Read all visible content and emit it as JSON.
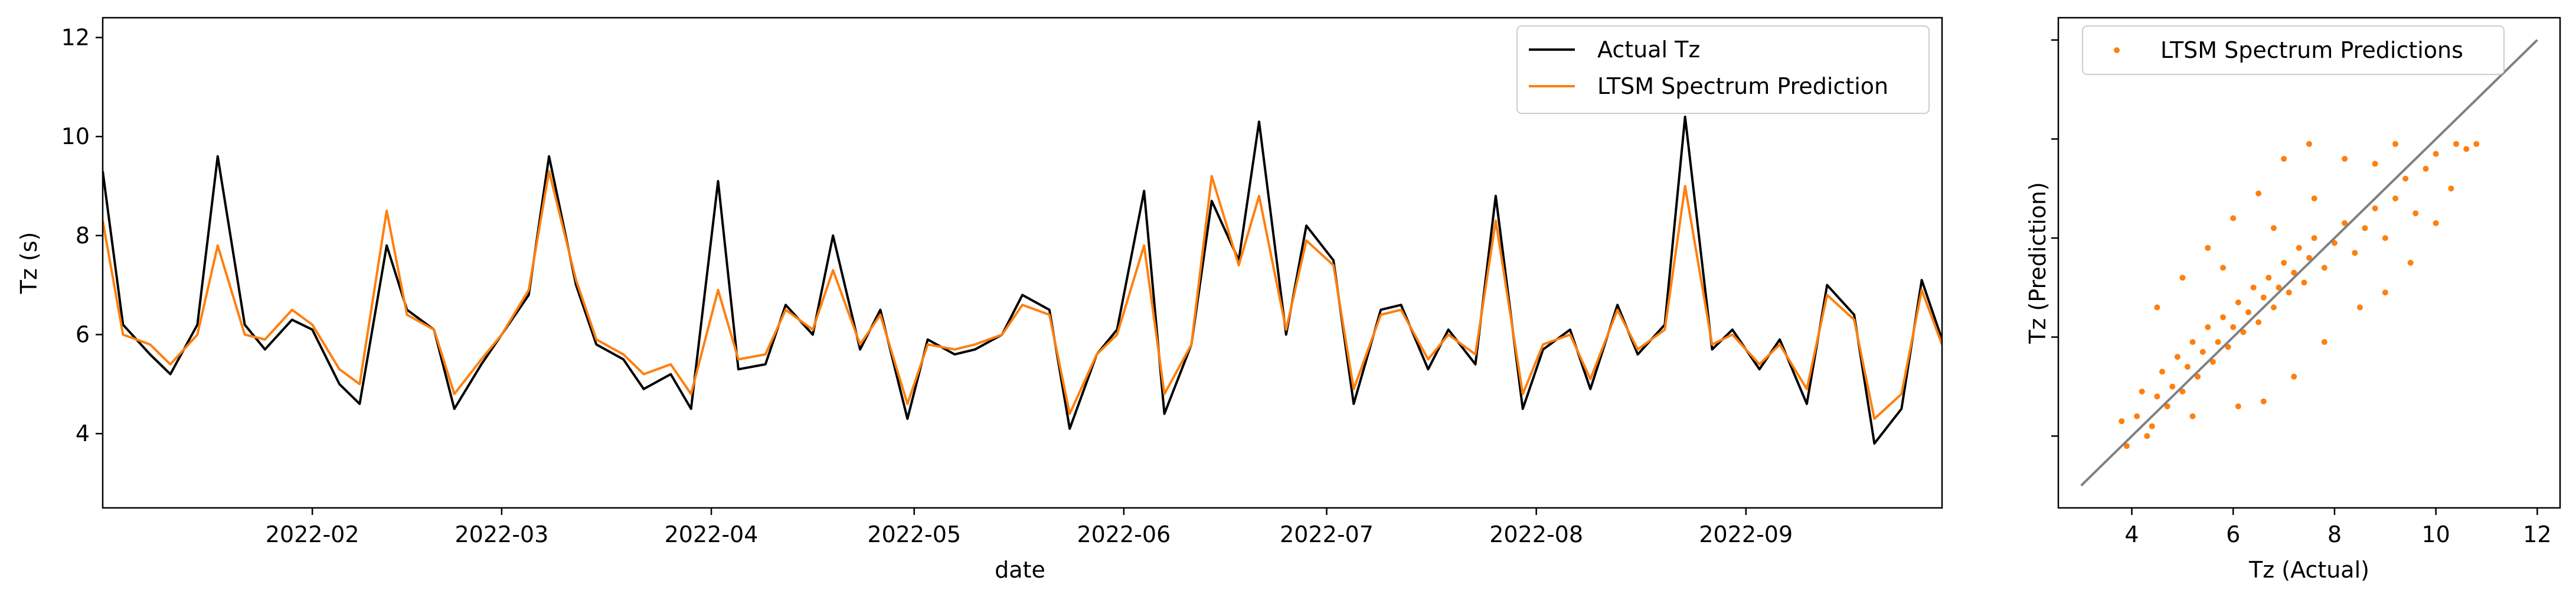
{
  "colors": {
    "actual": "#000000",
    "prediction": "#ff7f0e",
    "identity": "#808080",
    "frame": "#000000",
    "legend_edge": "#cccccc"
  },
  "chart_data": [
    {
      "type": "line",
      "xlabel": "date",
      "ylabel": "Tz (s)",
      "xlim": [
        "2022-01-01",
        "2022-09-30"
      ],
      "ylim": [
        2.5,
        12.4
      ],
      "x_ticks": [
        {
          "date": "2022-02-01",
          "label": "2022-02"
        },
        {
          "date": "2022-03-01",
          "label": "2022-03"
        },
        {
          "date": "2022-04-01",
          "label": "2022-04"
        },
        {
          "date": "2022-05-01",
          "label": "2022-05"
        },
        {
          "date": "2022-06-01",
          "label": "2022-06"
        },
        {
          "date": "2022-07-01",
          "label": "2022-07"
        },
        {
          "date": "2022-08-01",
          "label": "2022-08"
        },
        {
          "date": "2022-09-01",
          "label": "2022-09"
        }
      ],
      "y_ticks": [
        4,
        6,
        8,
        10,
        12
      ],
      "legend_position": "upper-right",
      "series": [
        {
          "name": "Actual Tz",
          "style": "line",
          "x": [
            "2022-01-01",
            "2022-01-04",
            "2022-01-08",
            "2022-01-11",
            "2022-01-15",
            "2022-01-18",
            "2022-01-22",
            "2022-01-25",
            "2022-01-29",
            "2022-02-01",
            "2022-02-05",
            "2022-02-08",
            "2022-02-12",
            "2022-02-15",
            "2022-02-19",
            "2022-02-22",
            "2022-02-26",
            "2022-03-01",
            "2022-03-05",
            "2022-03-08",
            "2022-03-12",
            "2022-03-15",
            "2022-03-19",
            "2022-03-22",
            "2022-03-26",
            "2022-03-29",
            "2022-04-02",
            "2022-04-05",
            "2022-04-09",
            "2022-04-12",
            "2022-04-16",
            "2022-04-19",
            "2022-04-23",
            "2022-04-26",
            "2022-04-30",
            "2022-05-03",
            "2022-05-07",
            "2022-05-10",
            "2022-05-14",
            "2022-05-17",
            "2022-05-21",
            "2022-05-24",
            "2022-05-28",
            "2022-05-31",
            "2022-06-04",
            "2022-06-07",
            "2022-06-11",
            "2022-06-14",
            "2022-06-18",
            "2022-06-21",
            "2022-06-25",
            "2022-06-28",
            "2022-07-02",
            "2022-07-05",
            "2022-07-09",
            "2022-07-12",
            "2022-07-16",
            "2022-07-19",
            "2022-07-23",
            "2022-07-26",
            "2022-07-30",
            "2022-08-02",
            "2022-08-06",
            "2022-08-09",
            "2022-08-13",
            "2022-08-16",
            "2022-08-20",
            "2022-08-23",
            "2022-08-27",
            "2022-08-30",
            "2022-09-03",
            "2022-09-06",
            "2022-09-10",
            "2022-09-13",
            "2022-09-17",
            "2022-09-20",
            "2022-09-24",
            "2022-09-27",
            "2022-09-30"
          ],
          "values": [
            9.3,
            6.2,
            5.6,
            5.2,
            6.2,
            9.6,
            6.2,
            5.7,
            6.3,
            6.1,
            5.0,
            4.6,
            7.8,
            6.5,
            6.1,
            4.5,
            5.4,
            6.0,
            6.8,
            9.6,
            7.0,
            5.8,
            5.5,
            4.9,
            5.2,
            4.5,
            9.1,
            5.3,
            5.4,
            6.6,
            6.0,
            8.0,
            5.7,
            6.5,
            4.3,
            5.9,
            5.6,
            5.7,
            6.0,
            6.8,
            6.5,
            4.1,
            5.6,
            6.1,
            8.9,
            4.4,
            5.8,
            8.7,
            7.5,
            10.3,
            6.0,
            8.2,
            7.5,
            4.6,
            6.5,
            6.6,
            5.3,
            6.1,
            5.4,
            8.8,
            4.5,
            5.7,
            6.1,
            4.9,
            6.6,
            5.6,
            6.2,
            10.4,
            5.7,
            6.1,
            5.3,
            5.9,
            4.6,
            7.0,
            6.4,
            3.8,
            4.5,
            7.1,
            5.9
          ]
        },
        {
          "name": "LTSM Spectrum Prediction",
          "style": "line",
          "x": [
            "2022-01-01",
            "2022-01-04",
            "2022-01-08",
            "2022-01-11",
            "2022-01-15",
            "2022-01-18",
            "2022-01-22",
            "2022-01-25",
            "2022-01-29",
            "2022-02-01",
            "2022-02-05",
            "2022-02-08",
            "2022-02-12",
            "2022-02-15",
            "2022-02-19",
            "2022-02-22",
            "2022-02-26",
            "2022-03-01",
            "2022-03-05",
            "2022-03-08",
            "2022-03-12",
            "2022-03-15",
            "2022-03-19",
            "2022-03-22",
            "2022-03-26",
            "2022-03-29",
            "2022-04-02",
            "2022-04-05",
            "2022-04-09",
            "2022-04-12",
            "2022-04-16",
            "2022-04-19",
            "2022-04-23",
            "2022-04-26",
            "2022-04-30",
            "2022-05-03",
            "2022-05-07",
            "2022-05-10",
            "2022-05-14",
            "2022-05-17",
            "2022-05-21",
            "2022-05-24",
            "2022-05-28",
            "2022-05-31",
            "2022-06-04",
            "2022-06-07",
            "2022-06-11",
            "2022-06-14",
            "2022-06-18",
            "2022-06-21",
            "2022-06-25",
            "2022-06-28",
            "2022-07-02",
            "2022-07-05",
            "2022-07-09",
            "2022-07-12",
            "2022-07-16",
            "2022-07-19",
            "2022-07-23",
            "2022-07-26",
            "2022-07-30",
            "2022-08-02",
            "2022-08-06",
            "2022-08-09",
            "2022-08-13",
            "2022-08-16",
            "2022-08-20",
            "2022-08-23",
            "2022-08-27",
            "2022-08-30",
            "2022-09-03",
            "2022-09-06",
            "2022-09-10",
            "2022-09-13",
            "2022-09-17",
            "2022-09-20",
            "2022-09-24",
            "2022-09-27",
            "2022-09-30"
          ],
          "values": [
            8.3,
            6.0,
            5.8,
            5.4,
            6.0,
            7.8,
            6.0,
            5.9,
            6.5,
            6.2,
            5.3,
            5.0,
            8.5,
            6.4,
            6.1,
            4.8,
            5.5,
            6.0,
            6.9,
            9.3,
            7.1,
            5.9,
            5.6,
            5.2,
            5.4,
            4.8,
            6.9,
            5.5,
            5.6,
            6.5,
            6.1,
            7.3,
            5.8,
            6.4,
            4.6,
            5.8,
            5.7,
            5.8,
            6.0,
            6.6,
            6.4,
            4.4,
            5.6,
            6.0,
            7.8,
            4.8,
            5.8,
            9.2,
            7.4,
            8.8,
            6.1,
            7.9,
            7.4,
            4.9,
            6.4,
            6.5,
            5.5,
            6.0,
            5.6,
            8.3,
            4.8,
            5.8,
            6.0,
            5.1,
            6.5,
            5.7,
            6.1,
            9.0,
            5.8,
            6.0,
            5.4,
            5.8,
            4.9,
            6.8,
            6.3,
            4.3,
            4.8,
            6.9,
            5.8
          ]
        }
      ]
    },
    {
      "type": "scatter",
      "xlabel": "Tz (Actual)",
      "ylabel": "Tz (Prediction)",
      "xlim": [
        2.55,
        12.45
      ],
      "ylim": [
        2.55,
        12.45
      ],
      "x_ticks": [
        4,
        6,
        8,
        10,
        12
      ],
      "legend_position": "upper-left",
      "identity_line": [
        3,
        12
      ],
      "series": [
        {
          "name": "LTSM Spectrum Predictions",
          "style": "points",
          "points": [
            [
              3.9,
              3.8
            ],
            [
              4.1,
              4.4
            ],
            [
              4.2,
              4.9
            ],
            [
              4.4,
              4.2
            ],
            [
              4.5,
              4.8
            ],
            [
              4.6,
              5.3
            ],
            [
              4.7,
              4.6
            ],
            [
              4.8,
              5.0
            ],
            [
              4.9,
              5.6
            ],
            [
              5.0,
              4.9
            ],
            [
              5.1,
              5.4
            ],
            [
              5.2,
              5.9
            ],
            [
              5.3,
              5.2
            ],
            [
              5.4,
              5.7
            ],
            [
              5.5,
              6.2
            ],
            [
              5.6,
              5.5
            ],
            [
              5.7,
              5.9
            ],
            [
              5.8,
              6.4
            ],
            [
              5.9,
              5.8
            ],
            [
              6.0,
              6.2
            ],
            [
              6.1,
              6.7
            ],
            [
              6.2,
              6.1
            ],
            [
              6.3,
              6.5
            ],
            [
              6.4,
              7.0
            ],
            [
              6.5,
              6.3
            ],
            [
              6.6,
              6.8
            ],
            [
              6.7,
              7.2
            ],
            [
              6.8,
              6.6
            ],
            [
              6.9,
              7.0
            ],
            [
              7.0,
              7.5
            ],
            [
              7.1,
              6.9
            ],
            [
              7.2,
              7.3
            ],
            [
              7.3,
              7.8
            ],
            [
              7.4,
              7.1
            ],
            [
              7.5,
              7.6
            ],
            [
              7.6,
              8.0
            ],
            [
              7.8,
              7.4
            ],
            [
              8.0,
              7.9
            ],
            [
              8.2,
              8.3
            ],
            [
              8.4,
              7.7
            ],
            [
              8.6,
              8.2
            ],
            [
              8.8,
              8.6
            ],
            [
              9.0,
              8.0
            ],
            [
              9.2,
              8.8
            ],
            [
              9.4,
              9.2
            ],
            [
              9.6,
              8.5
            ],
            [
              9.8,
              9.4
            ],
            [
              10.0,
              9.7
            ],
            [
              10.3,
              9.0
            ],
            [
              10.6,
              9.8
            ],
            [
              5.0,
              7.2
            ],
            [
              5.5,
              7.8
            ],
            [
              6.0,
              8.4
            ],
            [
              6.5,
              8.9
            ],
            [
              7.0,
              9.6
            ],
            [
              7.5,
              9.9
            ],
            [
              4.5,
              6.6
            ],
            [
              8.5,
              6.6
            ],
            [
              9.0,
              6.9
            ],
            [
              9.5,
              7.5
            ],
            [
              10.0,
              8.3
            ],
            [
              7.8,
              5.9
            ],
            [
              7.2,
              5.2
            ],
            [
              6.6,
              4.7
            ],
            [
              8.2,
              9.6
            ],
            [
              9.2,
              9.9
            ],
            [
              10.4,
              9.9
            ],
            [
              10.8,
              9.9
            ],
            [
              4.3,
              4.0
            ],
            [
              3.8,
              4.3
            ],
            [
              5.2,
              4.4
            ],
            [
              6.1,
              4.6
            ],
            [
              5.8,
              7.4
            ],
            [
              6.8,
              8.2
            ],
            [
              7.6,
              8.8
            ],
            [
              8.8,
              9.5
            ]
          ]
        }
      ]
    }
  ]
}
